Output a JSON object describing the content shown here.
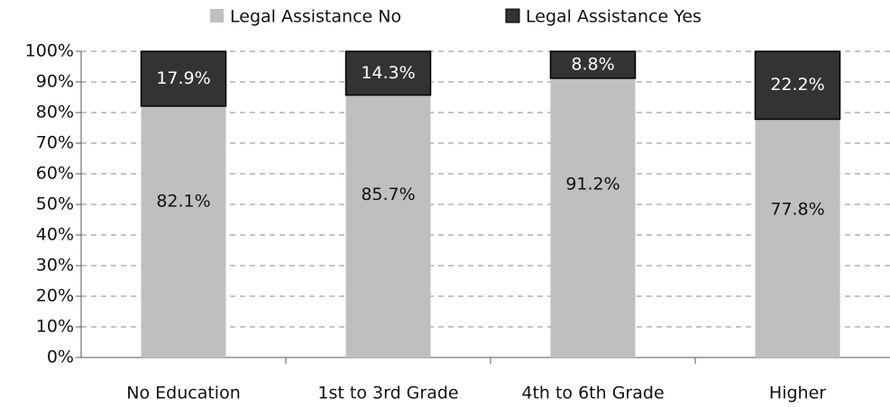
{
  "chart_data": {
    "type": "stacked_bar",
    "categories": [
      "No Education",
      "1st to 3rd Grade",
      "4th to 6th Grade",
      "Higher"
    ],
    "series": [
      {
        "name": "Legal Assistance No",
        "color": "#bfbfbf",
        "values": [
          82.1,
          85.7,
          91.2,
          77.8
        ],
        "value_labels": [
          "82.1%",
          "85.7%",
          "91.2%",
          "77.8%"
        ]
      },
      {
        "name": "Legal Assistance Yes",
        "color": "#333333",
        "values": [
          17.9,
          14.3,
          8.8,
          22.2
        ],
        "value_labels": [
          "17.9%",
          "14.3%",
          "8.8%",
          "22.2%"
        ]
      }
    ],
    "ylim": [
      0,
      100
    ],
    "yticks": [
      {
        "value": 0,
        "label": "0%"
      },
      {
        "value": 10,
        "label": "10%"
      },
      {
        "value": 20,
        "label": "20%"
      },
      {
        "value": 30,
        "label": "30%"
      },
      {
        "value": 40,
        "label": "40%"
      },
      {
        "value": 50,
        "label": "50%"
      },
      {
        "value": 60,
        "label": "60%"
      },
      {
        "value": 70,
        "label": "70%"
      },
      {
        "value": 80,
        "label": "80%"
      },
      {
        "value": 90,
        "label": "90%"
      },
      {
        "value": 100,
        "label": "100%"
      }
    ],
    "grid": true,
    "legend": "top"
  }
}
